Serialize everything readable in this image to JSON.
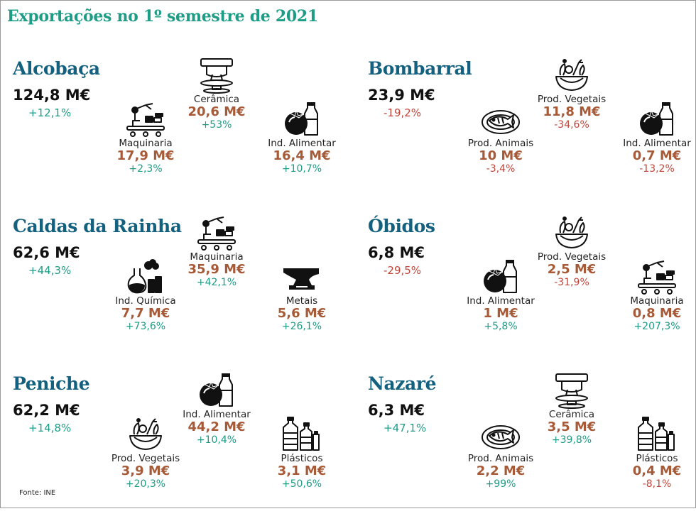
{
  "title": "Exportações no 1º semestre de 2021",
  "source": "Fonte: INE",
  "colors": {
    "title": "#1e9c86",
    "region_name": "#14607f",
    "sector_value": "#a75a37",
    "positive": "#1e9c86",
    "negative": "#c0463a"
  },
  "regions": [
    {
      "name": "Alcobaça",
      "total": "124,8 M€",
      "variation": "+12,1%",
      "trend": "pos",
      "sectors": [
        {
          "label": "Cerâmica",
          "value": "20,6 M€",
          "variation": "+53%",
          "trend": "pos",
          "icon": "pottery-wheel-icon"
        },
        {
          "label": "Maquinaria",
          "value": "17,9 M€",
          "variation": "+2,3%",
          "trend": "pos",
          "icon": "robot-arm-conveyor-icon"
        },
        {
          "label": "Ind. Alimentar",
          "value": "16,4 M€",
          "variation": "+10,7%",
          "trend": "pos",
          "icon": "tomato-bottle-icon"
        }
      ]
    },
    {
      "name": "Bombarral",
      "total": "23,9 M€",
      "variation": "-19,2%",
      "trend": "neg",
      "sectors": [
        {
          "label": "Prod. Vegetais",
          "value": "11,8 M€",
          "variation": "-34,6%",
          "trend": "neg",
          "icon": "vegetable-bowl-icon"
        },
        {
          "label": "Prod. Animais",
          "value": "10 M€",
          "variation": "-3,4%",
          "trend": "neg",
          "icon": "fish-plate-icon"
        },
        {
          "label": "Ind. Alimentar",
          "value": "0,7 M€",
          "variation": "-13,2%",
          "trend": "neg",
          "icon": "tomato-bottle-icon"
        }
      ]
    },
    {
      "name": "Caldas da Rainha",
      "total": "62,6 M€",
      "variation": "+44,3%",
      "trend": "pos",
      "sectors": [
        {
          "label": "Maquinaria",
          "value": "35,9 M€",
          "variation": "+42,1%",
          "trend": "pos",
          "icon": "robot-arm-conveyor-icon"
        },
        {
          "label": "Ind. Química",
          "value": "7,7 M€",
          "variation": "+73,6%",
          "trend": "pos",
          "icon": "chemistry-flask-icon"
        },
        {
          "label": "Metais",
          "value": "5,6 M€",
          "variation": "+26,1%",
          "trend": "pos",
          "icon": "anvil-icon"
        }
      ]
    },
    {
      "name": "Óbidos",
      "total": "6,8 M€",
      "variation": "-29,5%",
      "trend": "neg",
      "sectors": [
        {
          "label": "Prod. Vegetais",
          "value": "2,5 M€",
          "variation": "-31,9%",
          "trend": "neg",
          "icon": "vegetable-bowl-icon"
        },
        {
          "label": "Ind. Alimentar",
          "value": "1 M€",
          "variation": "+5,8%",
          "trend": "pos",
          "icon": "tomato-bottle-icon"
        },
        {
          "label": "Maquinaria",
          "value": "0,8 M€",
          "variation": "+207,3%",
          "trend": "pos",
          "icon": "robot-arm-conveyor-icon"
        }
      ]
    },
    {
      "name": "Peniche",
      "total": "62,2 M€",
      "variation": "+14,8%",
      "trend": "pos",
      "sectors": [
        {
          "label": "Ind. Alimentar",
          "value": "44,2 M€",
          "variation": "+10,4%",
          "trend": "pos",
          "icon": "tomato-bottle-icon"
        },
        {
          "label": "Prod. Vegetais",
          "value": "3,9 M€",
          "variation": "+20,3%",
          "trend": "pos",
          "icon": "vegetable-bowl-icon"
        },
        {
          "label": "Plásticos",
          "value": "3,1 M€",
          "variation": "+50,6%",
          "trend": "pos",
          "icon": "plastic-bottles-icon"
        }
      ]
    },
    {
      "name": "Nazaré",
      "total": "6,3 M€",
      "variation": "+47,1%",
      "trend": "pos",
      "sectors": [
        {
          "label": "Cerâmica",
          "value": "3,5 M€",
          "variation": "+39,8%",
          "trend": "pos",
          "icon": "pottery-wheel-icon"
        },
        {
          "label": "Prod. Animais",
          "value": "2,2 M€",
          "variation": "+99%",
          "trend": "pos",
          "icon": "fish-plate-icon"
        },
        {
          "label": "Plásticos",
          "value": "0,4 M€",
          "variation": "-8,1%",
          "trend": "neg",
          "icon": "plastic-bottles-icon"
        }
      ]
    }
  ]
}
